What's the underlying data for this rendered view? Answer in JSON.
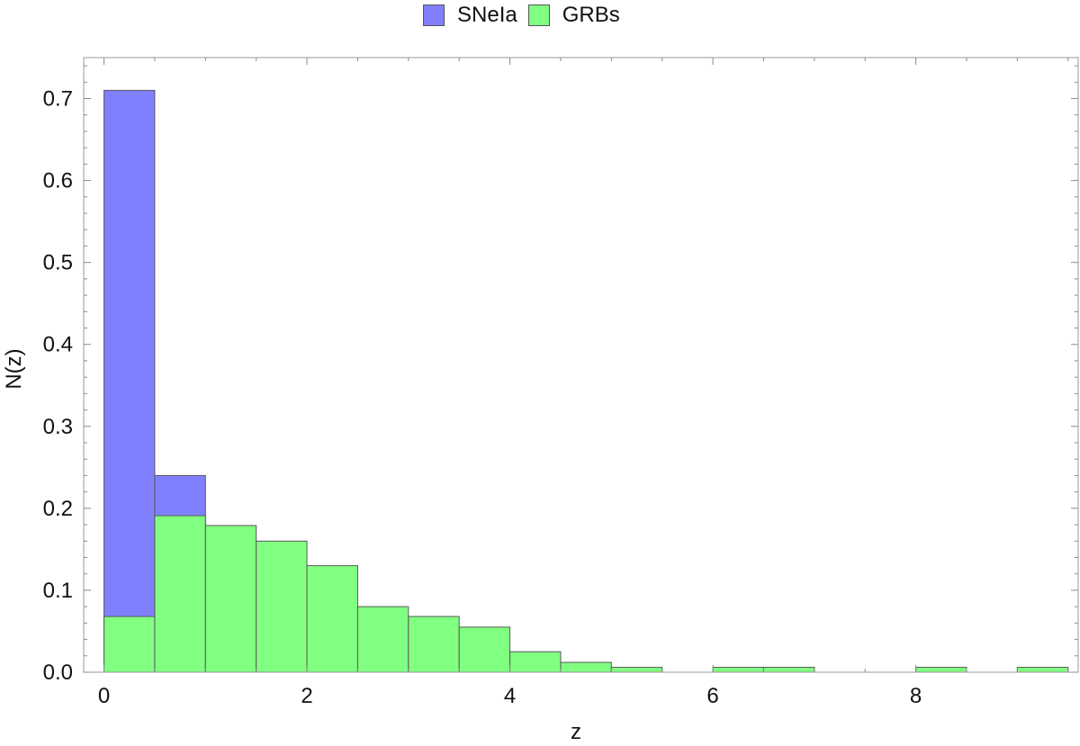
{
  "chart_data": {
    "type": "bar",
    "title": "",
    "xlabel": "z",
    "ylabel": "N(z)",
    "xlim": [
      -0.2,
      9.6
    ],
    "ylim": [
      0,
      0.75
    ],
    "xticks": [
      "0",
      "2",
      "4",
      "6",
      "8"
    ],
    "yticks": [
      "0.0",
      "0.1",
      "0.2",
      "0.3",
      "0.4",
      "0.5",
      "0.6",
      "0.7"
    ],
    "legend_placement": "top-center",
    "bin_width": 0.5,
    "series": [
      {
        "name": "SNeIa",
        "color": "#8080ff",
        "bins": [
          {
            "x": 0.0,
            "value": 0.71
          },
          {
            "x": 0.5,
            "value": 0.24
          }
        ]
      },
      {
        "name": "GRBs",
        "color": "#80ff80",
        "bins": [
          {
            "x": 0.0,
            "value": 0.068
          },
          {
            "x": 0.5,
            "value": 0.191
          },
          {
            "x": 1.0,
            "value": 0.179
          },
          {
            "x": 1.5,
            "value": 0.16
          },
          {
            "x": 2.0,
            "value": 0.13
          },
          {
            "x": 2.5,
            "value": 0.08
          },
          {
            "x": 3.0,
            "value": 0.068
          },
          {
            "x": 3.5,
            "value": 0.055
          },
          {
            "x": 4.0,
            "value": 0.025
          },
          {
            "x": 4.5,
            "value": 0.012
          },
          {
            "x": 5.0,
            "value": 0.006
          },
          {
            "x": 6.0,
            "value": 0.006
          },
          {
            "x": 6.5,
            "value": 0.006
          },
          {
            "x": 8.0,
            "value": 0.006
          },
          {
            "x": 9.0,
            "value": 0.006
          }
        ]
      }
    ]
  },
  "legend": {
    "items": [
      {
        "label": "SNeIa",
        "color": "#8080ff"
      },
      {
        "label": "GRBs",
        "color": "#80ff80"
      }
    ]
  }
}
